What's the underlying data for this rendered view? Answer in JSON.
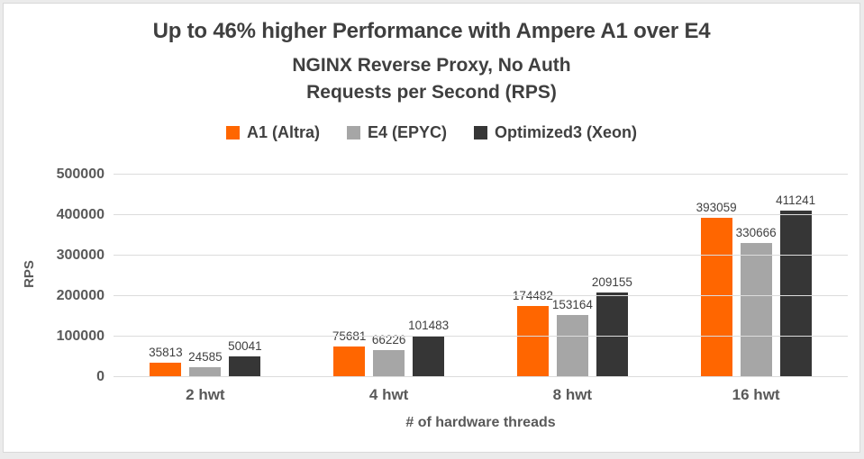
{
  "chart_data": {
    "type": "bar",
    "title": "Up to 46% higher Performance with Ampere A1 over E4",
    "subtitle1": "NGINX Reverse Proxy, No Auth",
    "subtitle2": "Requests per Second (RPS)",
    "categories": [
      "2 hwt",
      "4 hwt",
      "8 hwt",
      "16 hwt"
    ],
    "series": [
      {
        "name": "A1 (Altra)",
        "color": "#FF6600",
        "values": [
          35813,
          75681,
          174482,
          393059
        ]
      },
      {
        "name": "E4 (EPYC)",
        "color": "#A6A6A6",
        "values": [
          24585,
          66226,
          153164,
          330666
        ]
      },
      {
        "name": "Optimized3 (Xeon)",
        "color": "#363636",
        "values": [
          50041,
          101483,
          209155,
          411241
        ]
      }
    ],
    "xlabel": "# of hardware threads",
    "ylabel": "RPS",
    "ylim": [
      0,
      500000
    ],
    "yticks": [
      0,
      100000,
      200000,
      300000,
      400000,
      500000
    ],
    "grid": true,
    "legend_position": "top",
    "data_labels": true
  },
  "colors": {
    "background": "#ffffff",
    "frame": "#ebebeb",
    "grid": "#dcdcdc",
    "title_text": "#3f3f3f",
    "axis_text": "#595959",
    "label_text": "#404040"
  }
}
